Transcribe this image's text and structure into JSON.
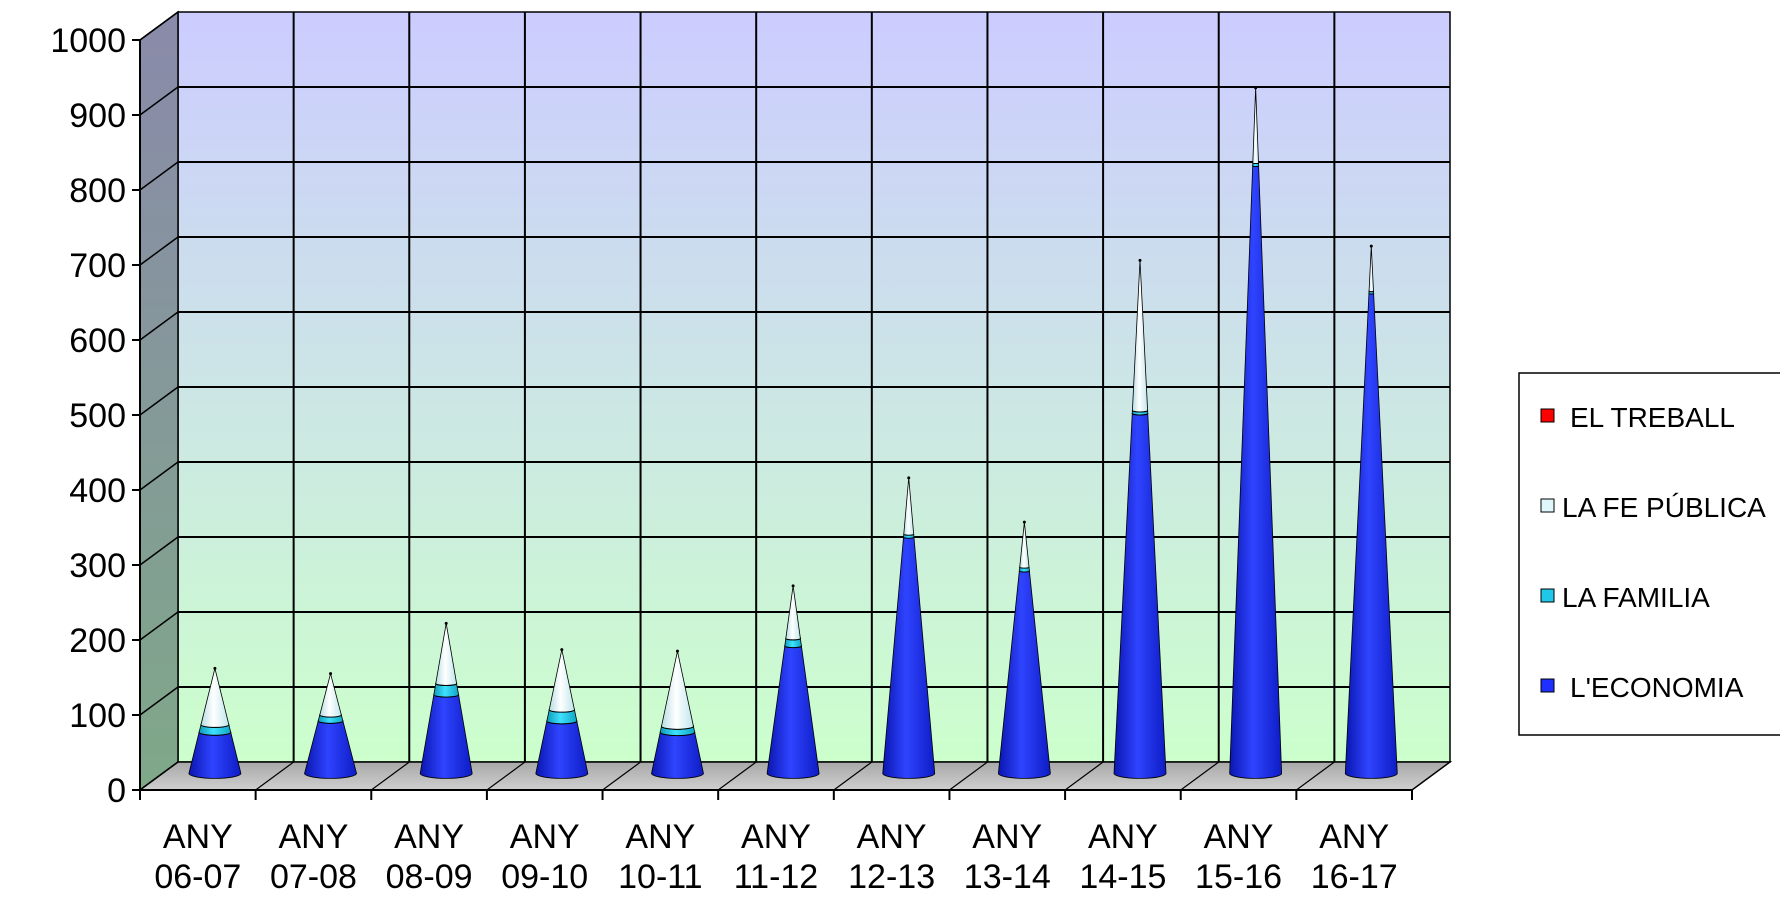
{
  "chart_data": {
    "type": "bar",
    "style": "3d-stacked-cone",
    "categories": [
      [
        "ANY",
        "06-07"
      ],
      [
        "ANY",
        "07-08"
      ],
      [
        "ANY",
        "08-09"
      ],
      [
        "ANY",
        "09-10"
      ],
      [
        "ANY",
        "10-11"
      ],
      [
        "ANY",
        "11-12"
      ],
      [
        "ANY",
        "12-13"
      ],
      [
        "ANY",
        "13-14"
      ],
      [
        "ANY",
        "14-15"
      ],
      [
        "ANY",
        "15-16"
      ],
      [
        "ANY",
        "16-17"
      ]
    ],
    "series": [
      {
        "name": "L'ECONOMIA",
        "color": "#1f2fff",
        "values": [
          55,
          70,
          105,
          70,
          55,
          170,
          315,
          270,
          480,
          810,
          640
        ]
      },
      {
        "name": "LA FAMILIA",
        "color": "#1fc8e8",
        "values": [
          10,
          8,
          15,
          15,
          8,
          10,
          4,
          5,
          4,
          4,
          3
        ]
      },
      {
        "name": "LA FE PÚBLICA",
        "color": "#dff7fa",
        "values": [
          75,
          55,
          80,
          80,
          100,
          70,
          75,
          60,
          200,
          100,
          60
        ]
      },
      {
        "name": "EL TREBALL",
        "color": "#ff0000",
        "values": [
          0,
          0,
          0,
          0,
          0,
          0,
          0,
          0,
          0,
          0,
          0
        ]
      }
    ],
    "legend_order": [
      "EL TREBALL",
      "LA FE PÚBLICA",
      "LA FAMILIA",
      "L'ECONOMIA"
    ],
    "yticks": [
      "0",
      "100",
      "200",
      "300",
      "400",
      "500",
      "600",
      "700",
      "800",
      "900",
      "1000"
    ],
    "ylim": [
      0,
      1000
    ],
    "grid": true,
    "legend_position": "right"
  }
}
